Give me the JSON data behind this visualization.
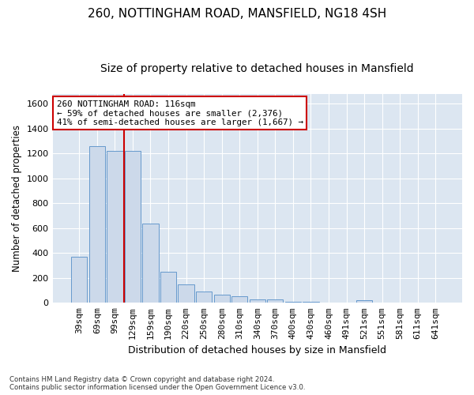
{
  "title1": "260, NOTTINGHAM ROAD, MANSFIELD, NG18 4SH",
  "title2": "Size of property relative to detached houses in Mansfield",
  "xlabel": "Distribution of detached houses by size in Mansfield",
  "ylabel": "Number of detached properties",
  "categories": [
    "39sqm",
    "69sqm",
    "99sqm",
    "129sqm",
    "159sqm",
    "190sqm",
    "220sqm",
    "250sqm",
    "280sqm",
    "310sqm",
    "340sqm",
    "370sqm",
    "400sqm",
    "430sqm",
    "460sqm",
    "491sqm",
    "521sqm",
    "551sqm",
    "581sqm",
    "611sqm",
    "641sqm"
  ],
  "values": [
    370,
    1260,
    1220,
    1220,
    640,
    250,
    148,
    90,
    65,
    50,
    30,
    25,
    10,
    10,
    5,
    0,
    20,
    0,
    0,
    0,
    0
  ],
  "bar_color": "#ccd9ea",
  "bar_edge_color": "#6699cc",
  "vline_x": 2.5,
  "vline_color": "#cc0000",
  "annotation_text": "260 NOTTINGHAM ROAD: 116sqm\n← 59% of detached houses are smaller (2,376)\n41% of semi-detached houses are larger (1,667) →",
  "annotation_box_color": "#ffffff",
  "annotation_box_edge_color": "#cc0000",
  "ylim": [
    0,
    1680
  ],
  "yticks": [
    0,
    200,
    400,
    600,
    800,
    1000,
    1200,
    1400,
    1600
  ],
  "background_color": "#dce6f1",
  "grid_color": "#ffffff",
  "footer_text": "Contains HM Land Registry data © Crown copyright and database right 2024.\nContains public sector information licensed under the Open Government Licence v3.0.",
  "title1_fontsize": 11,
  "title2_fontsize": 10,
  "xlabel_fontsize": 9,
  "ylabel_fontsize": 8.5,
  "tick_fontsize": 8,
  "annot_fontsize": 7.8
}
